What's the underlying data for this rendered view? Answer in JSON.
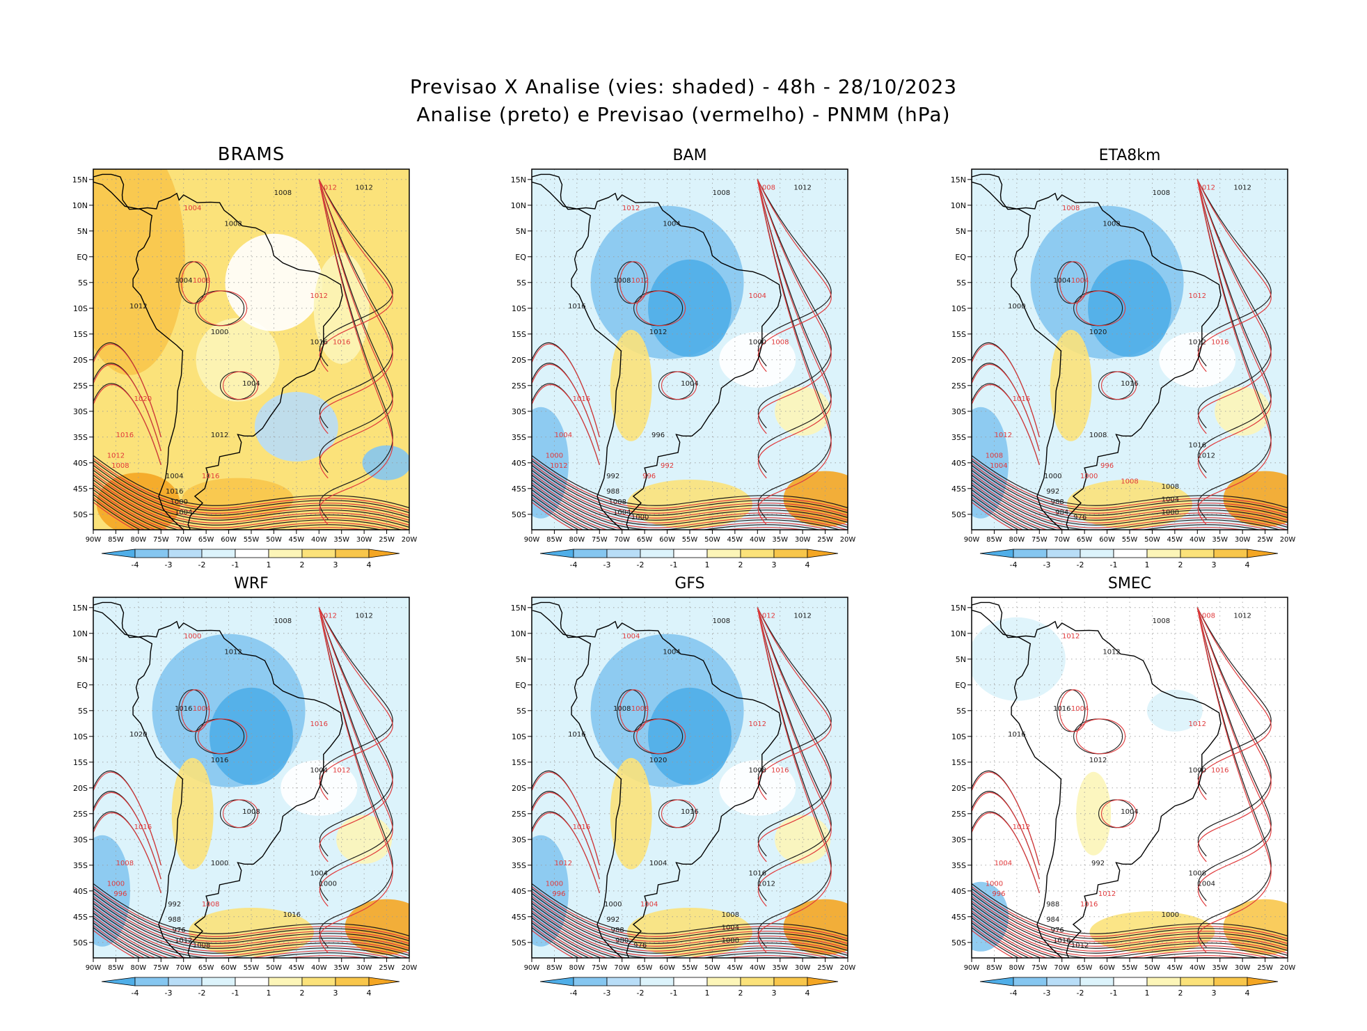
{
  "figure": {
    "title_line1": "Previsao X Analise (vies: shaded) - 48h - 28/10/2023",
    "title_line2": "Analise (preto) e Previsao (vermelho) - PNMM (hPa)"
  },
  "axes": {
    "lon_labels": [
      "90W",
      "85W",
      "80W",
      "75W",
      "70W",
      "65W",
      "60W",
      "55W",
      "50W",
      "45W",
      "40W",
      "35W",
      "30W",
      "25W",
      "20W"
    ],
    "lat_labels": [
      "15N",
      "10N",
      "5N",
      "EQ",
      "5S",
      "10S",
      "15S",
      "20S",
      "25S",
      "30S",
      "35S",
      "40S",
      "45S",
      "50S"
    ],
    "lon_range": [
      -90,
      -20
    ],
    "lat_range": [
      -53,
      17
    ]
  },
  "colorbar": {
    "labels": [
      "-4",
      "-3",
      "-2",
      "-1",
      "1",
      "2",
      "3",
      "4"
    ],
    "colors": [
      "#4faee8",
      "#85c6f0",
      "#b8ddf7",
      "#dcf3fb",
      "#ffffff",
      "#fcf5b8",
      "#fbe27a",
      "#f8c64b",
      "#f4a623"
    ]
  },
  "colors": {
    "analysis_contour": "#1a1a1a",
    "forecast_contour": "#e0393b",
    "coastline": "#000000",
    "grid": "#9a9a9a"
  },
  "panels": [
    {
      "name": "BRAMS",
      "bias": "warm",
      "labels_black": [
        "1012",
        "1008",
        "1008",
        "1004",
        "1012",
        "1000",
        "1004",
        "1016",
        "1012",
        "1004",
        "1016",
        "1000",
        "1004"
      ],
      "labels_red": [
        "1012",
        "1004",
        "1008",
        "1012",
        "1016",
        "1020",
        "1016",
        "1012",
        "1008",
        "1016"
      ]
    },
    {
      "name": "BAM",
      "bias": "cool",
      "labels_black": [
        "1012",
        "1008",
        "1004",
        "1008",
        "1016",
        "1012",
        "1004",
        "1000",
        "996",
        "992",
        "988",
        "1008",
        "1004",
        "1000"
      ],
      "labels_red": [
        "1008",
        "1012",
        "1012",
        "1004",
        "1008",
        "1016",
        "1004",
        "1000",
        "1012",
        "996",
        "992"
      ]
    },
    {
      "name": "ETA8km",
      "bias": "cool",
      "labels_black": [
        "1012",
        "1008",
        "1008",
        "1004",
        "1000",
        "1020",
        "1016",
        "1012",
        "1008",
        "1000",
        "992",
        "988",
        "984",
        "976",
        "1016",
        "1012",
        "1008",
        "1004",
        "1000"
      ],
      "labels_red": [
        "1012",
        "1008",
        "1004",
        "1012",
        "1016",
        "1016",
        "1012",
        "1008",
        "1004",
        "1000",
        "996",
        "1008"
      ]
    },
    {
      "name": "WRF",
      "bias": "cool",
      "labels_black": [
        "1012",
        "1008",
        "1012",
        "1016",
        "1020",
        "1016",
        "1008",
        "1004",
        "1000",
        "992",
        "988",
        "976",
        "1012",
        "1008",
        "1004",
        "1000",
        "1016"
      ],
      "labels_red": [
        "1012",
        "1000",
        "1004",
        "1016",
        "1012",
        "1016",
        "1008",
        "1000",
        "996",
        "1008"
      ]
    },
    {
      "name": "GFS",
      "bias": "cool",
      "labels_black": [
        "1012",
        "1008",
        "1004",
        "1008",
        "1016",
        "1020",
        "1016",
        "1008",
        "1004",
        "1000",
        "992",
        "988",
        "980",
        "976",
        "1016",
        "1012",
        "1008",
        "1004",
        "1000"
      ],
      "labels_red": [
        "1012",
        "1004",
        "1008",
        "1012",
        "1016",
        "1016",
        "1012",
        "1000",
        "996",
        "1004"
      ]
    },
    {
      "name": "SMEC",
      "bias": "neutral",
      "labels_black": [
        "1012",
        "1008",
        "1012",
        "1016",
        "1016",
        "1012",
        "1004",
        "1000",
        "992",
        "988",
        "984",
        "976",
        "1016",
        "1012",
        "1008",
        "1004",
        "1000"
      ],
      "labels_red": [
        "1008",
        "1012",
        "1004",
        "1012",
        "1016",
        "1012",
        "1004",
        "1000",
        "996",
        "1016",
        "1012"
      ]
    }
  ]
}
